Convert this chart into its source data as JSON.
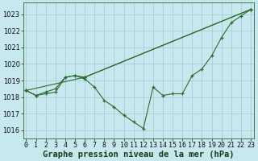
{
  "title": "Graphe pression niveau de la mer (hPa)",
  "background_color": "#c8e8f0",
  "grid_color": "#a0c8d0",
  "line_color": "#2d6a2d",
  "ylim": [
    1015.5,
    1023.7
  ],
  "xlim": [
    -0.3,
    23.3
  ],
  "yticks": [
    1016,
    1017,
    1018,
    1019,
    1020,
    1021,
    1022,
    1023
  ],
  "xticks": [
    0,
    1,
    2,
    3,
    4,
    5,
    6,
    7,
    8,
    9,
    10,
    11,
    12,
    13,
    14,
    15,
    16,
    17,
    18,
    19,
    20,
    21,
    22,
    23
  ],
  "line1_x": [
    0,
    1,
    2,
    3,
    4,
    5,
    6,
    7,
    8,
    9,
    10,
    11,
    12,
    13,
    14,
    15,
    16,
    17,
    18,
    19,
    20,
    21,
    22,
    23
  ],
  "line1_y": [
    1018.4,
    1018.1,
    1018.2,
    1018.3,
    1019.2,
    1019.3,
    1019.1,
    1018.6,
    1017.8,
    1017.4,
    1016.9,
    1016.5,
    1016.1,
    1018.6,
    1018.1,
    1018.2,
    1018.2,
    1019.3,
    1019.7,
    1020.5,
    1021.6,
    1022.5,
    1022.9,
    1023.3
  ],
  "line2_x": [
    0,
    1,
    2,
    3,
    4,
    5,
    6,
    23
  ],
  "line2_y": [
    1018.4,
    1018.1,
    1018.3,
    1018.5,
    1019.2,
    1019.3,
    1019.2,
    1023.3
  ],
  "line3_x": [
    0,
    6,
    23
  ],
  "line3_y": [
    1018.4,
    1019.2,
    1023.3
  ],
  "title_fontsize": 7.5,
  "tick_fontsize": 6.0
}
